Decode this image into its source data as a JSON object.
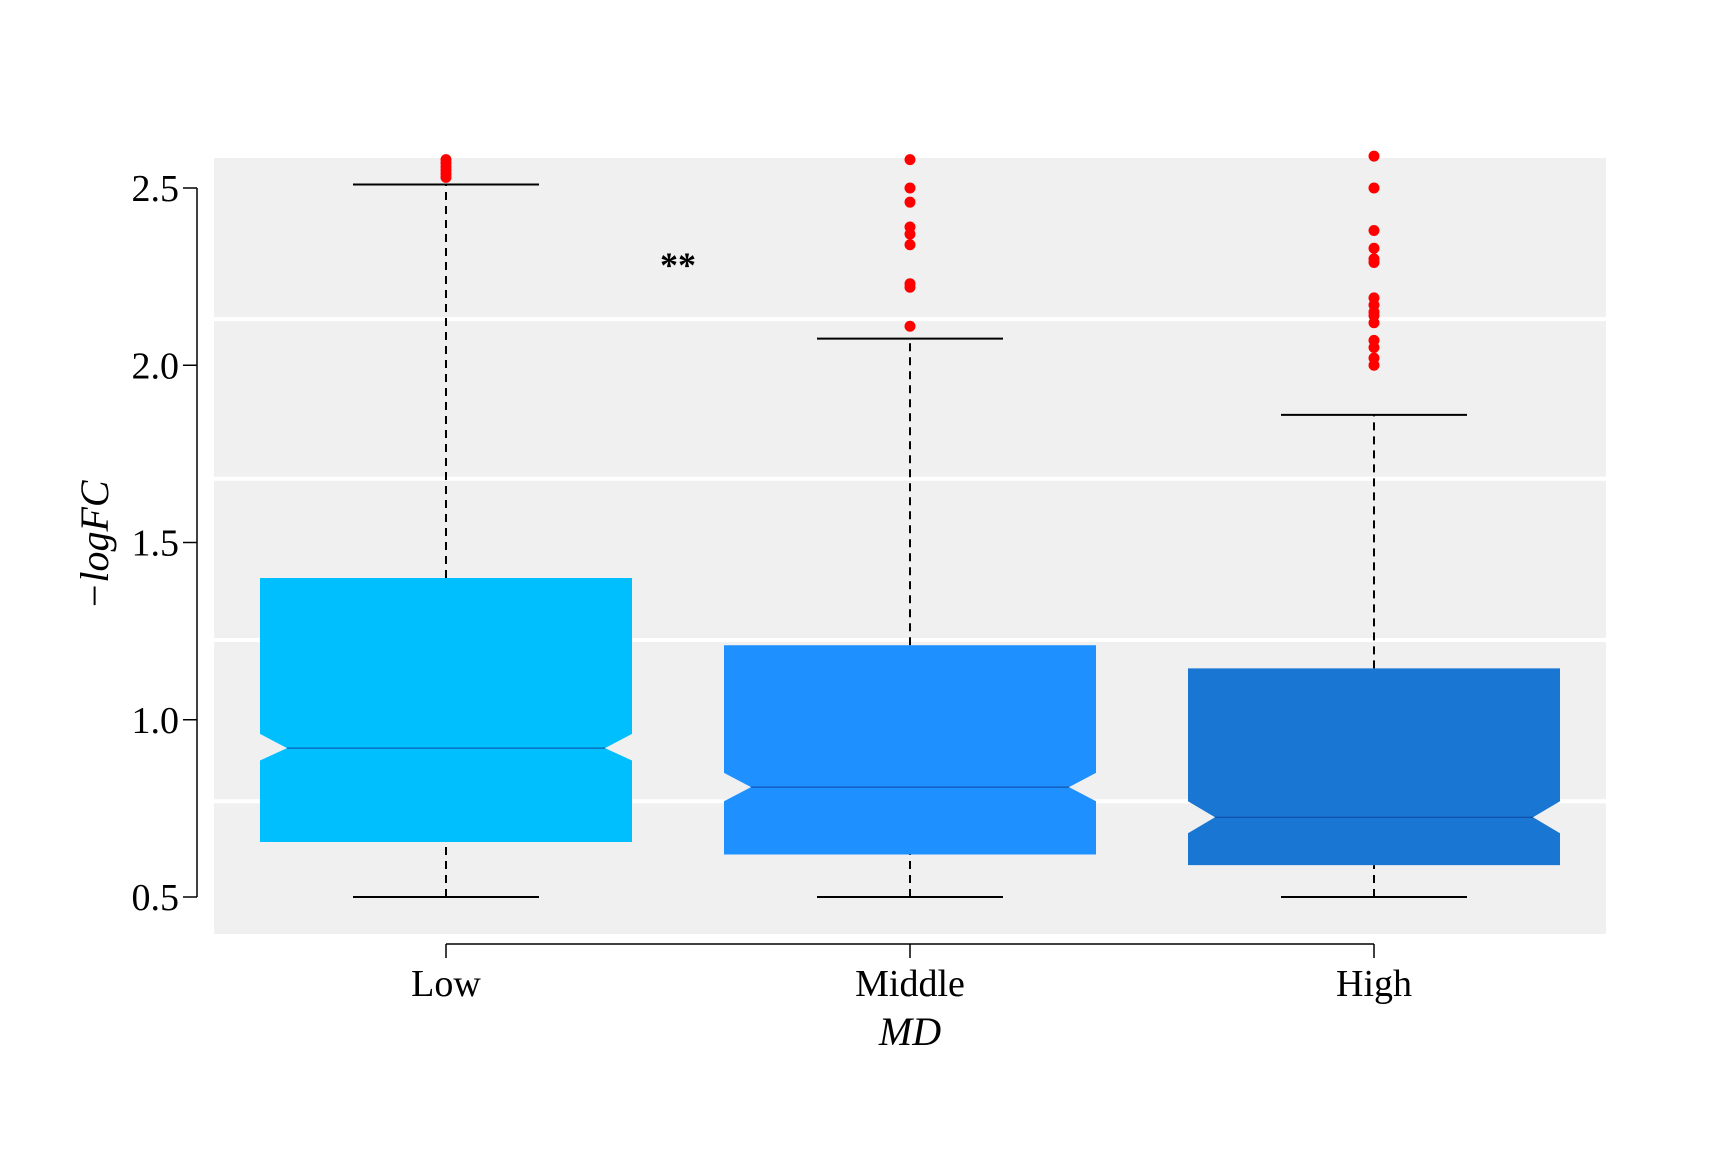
{
  "chart_data": {
    "type": "boxplot",
    "notched": true,
    "xlabel": "MD",
    "ylabel": "−logFC",
    "ylim": [
      0.4,
      2.59
    ],
    "yticks": [
      {
        "value": 0.5,
        "label": "0.5"
      },
      {
        "value": 1.0,
        "label": "1.0"
      },
      {
        "value": 1.5,
        "label": "1.5"
      },
      {
        "value": 2.0,
        "label": "2.0"
      },
      {
        "value": 2.5,
        "label": "2.5"
      }
    ],
    "gridlines": [
      0.77,
      1.225,
      1.68,
      2.13
    ],
    "grid": true,
    "annotation": {
      "text": "**",
      "x": 0.5,
      "y": 2.3
    },
    "colors": {
      "panel_bg": "#f0f0f0",
      "grid": "#ffffff",
      "outlier": "#ff0000",
      "whisker": "#000000"
    },
    "boxes": [
      {
        "category": "Low",
        "color": "#00bfff",
        "whislo": 0.5,
        "q1": 0.655,
        "median": 0.92,
        "q3": 1.4,
        "whishi": 2.51,
        "notch_lo": 0.885,
        "notch_hi": 0.96,
        "outliers": [
          2.53,
          2.54,
          2.55,
          2.56,
          2.57,
          2.58
        ]
      },
      {
        "category": "Middle",
        "color": "#1e90ff",
        "whislo": 0.5,
        "q1": 0.62,
        "median": 0.81,
        "q3": 1.21,
        "whishi": 2.075,
        "notch_lo": 0.77,
        "notch_hi": 0.85,
        "outliers": [
          2.11,
          2.22,
          2.23,
          2.34,
          2.37,
          2.39,
          2.46,
          2.5,
          2.58
        ]
      },
      {
        "category": "High",
        "color": "#1976d2",
        "whislo": 0.5,
        "q1": 0.59,
        "median": 0.725,
        "q3": 1.145,
        "whishi": 1.86,
        "notch_lo": 0.68,
        "notch_hi": 0.77,
        "outliers": [
          2.0,
          2.02,
          2.05,
          2.07,
          2.12,
          2.14,
          2.15,
          2.17,
          2.19,
          2.29,
          2.3,
          2.33,
          2.38,
          2.5,
          2.59
        ]
      }
    ]
  }
}
